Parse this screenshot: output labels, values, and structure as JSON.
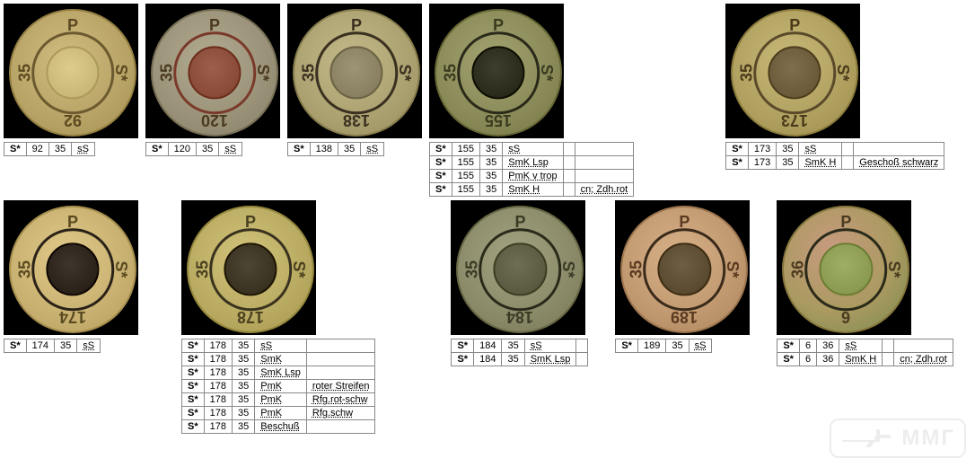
{
  "watermark_text": "ММГ",
  "rows": [
    {
      "items": [
        {
          "coin": {
            "top": "P",
            "right": "S*",
            "left": "35",
            "bottom": "92",
            "bg": "#b8a366",
            "ring": "#6b5a2f",
            "center": "#c9b878",
            "txt": "#5a4a20"
          },
          "table": [
            [
              "S*",
              "92",
              "35",
              "sS"
            ]
          ]
        },
        {
          "coin": {
            "top": "P",
            "right": "S*",
            "left": "35",
            "bottom": "120",
            "bg": "#9a9278",
            "ring": "#7a3a2a",
            "center": "#8a4a38",
            "txt": "#4a3a20"
          },
          "table": [
            [
              "S*",
              "120",
              "35",
              "sS"
            ]
          ]
        },
        {
          "coin": {
            "top": "P",
            "right": "S*",
            "left": "35",
            "bottom": "138",
            "bg": "#aaa070",
            "ring": "#3a3020",
            "center": "#888060",
            "txt": "#3a3020"
          },
          "table": [
            [
              "S*",
              "138",
              "35",
              "sS"
            ]
          ]
        },
        {
          "coin": {
            "top": "P",
            "right": "S*",
            "left": "35",
            "bottom": "155",
            "bg": "#8a8a58",
            "ring": "#2a2a1a",
            "center": "#2a2a1a",
            "txt": "#3a3a20"
          },
          "table": [
            [
              "S*",
              "155",
              "35",
              "sS",
              "",
              ""
            ],
            [
              "S*",
              "155",
              "35",
              "SmK Lsp",
              "",
              ""
            ],
            [
              "S*",
              "155",
              "35",
              "PmK v trop",
              "",
              ""
            ],
            [
              "S*",
              "155",
              "35",
              "SmK H",
              "",
              "cn; Zdh.rot"
            ]
          ],
          "wide": true
        },
        {
          "coin": {
            "top": "P",
            "right": "S*",
            "left": "35",
            "bottom": "173",
            "bg": "#b0a060",
            "ring": "#5a4a2a",
            "center": "#6a5a3a",
            "txt": "#4a3a1a"
          },
          "table": [
            [
              "S*",
              "173",
              "35",
              "sS",
              "",
              ""
            ],
            [
              "S*",
              "173",
              "35",
              "SmK H",
              "",
              "Geschoß schwarz"
            ]
          ],
          "wide": true,
          "offset": 94
        }
      ]
    },
    {
      "items": [
        {
          "coin": {
            "top": "P",
            "right": "S*",
            "left": "35",
            "bottom": "174",
            "bg": "#c8b070",
            "ring": "#2a2218",
            "center": "#2a2218",
            "txt": "#5a4a20"
          },
          "table": [
            [
              "S*",
              "174",
              "35",
              "sS"
            ]
          ]
        },
        {
          "coin": {
            "top": "P",
            "right": "S*",
            "left": "35",
            "bottom": "178",
            "bg": "#b8aa60",
            "ring": "#3a3220",
            "center": "#3a3220",
            "txt": "#4a4020"
          },
          "table": [
            [
              "S*",
              "178",
              "35",
              "sS",
              ""
            ],
            [
              "S*",
              "178",
              "35",
              "SmK",
              ""
            ],
            [
              "S*",
              "178",
              "35",
              "SmK Lsp",
              ""
            ],
            [
              "S*",
              "178",
              "35",
              "PmK",
              "roter Streifen"
            ],
            [
              "S*",
              "178",
              "35",
              "PmK",
              "Rfg.rot-schw"
            ],
            [
              "S*",
              "178",
              "35",
              "PmK",
              "Rfg.schw"
            ],
            [
              "S*",
              "178",
              "35",
              "Beschuß",
              ""
            ]
          ],
          "offset": 40
        },
        {
          "coin": {
            "top": "P",
            "right": "S*",
            "left": "35",
            "bottom": "184",
            "bg": "#8a8a68",
            "ring": "#2a2a1a",
            "center": "#5a5a40",
            "txt": "#3a3a26"
          },
          "table": [
            [
              "S*",
              "184",
              "35",
              "sS",
              ""
            ],
            [
              "S*",
              "184",
              "35",
              "SmK Lsp",
              ""
            ]
          ],
          "offset": 76
        },
        {
          "coin": {
            "top": "P",
            "right": "S*",
            "left": "35",
            "bottom": "189",
            "bg": "#c09870",
            "ring": "#3a2a1a",
            "center": "#5a4a30",
            "txt": "#5a3a20"
          },
          "table": [
            [
              "S*",
              "189",
              "35",
              "sS"
            ]
          ],
          "offset": 22
        },
        {
          "coin": {
            "top": "P",
            "right": "S*",
            "left": "36",
            "bottom": "6",
            "bg": "#aa9a60",
            "ring": "#2a2a1a",
            "center": "#8a9a50",
            "txt": "#4a3a20",
            "variant": "rose"
          },
          "table": [
            [
              "S*",
              "6",
              "36",
              "sS",
              "",
              ""
            ],
            [
              "S*",
              "6",
              "36",
              "SmK H",
              "",
              "cn; Zdh.rot"
            ]
          ],
          "wide": true,
          "offset": 22
        }
      ]
    }
  ]
}
